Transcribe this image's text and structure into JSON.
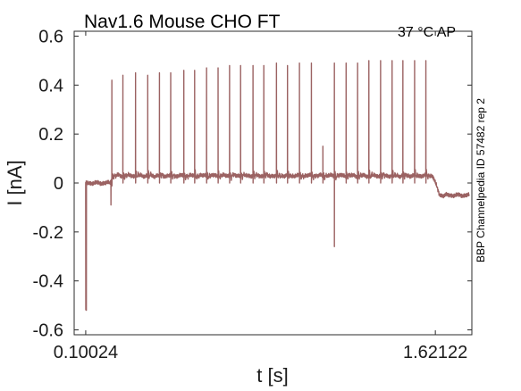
{
  "chart_data": {
    "type": "line",
    "title": "Nav1.6  Mouse  CHO FT",
    "condition": "37 °C  AP",
    "side_note": "BBP Channelpedia ID 57482 rep 2",
    "xlabel": "t [s]",
    "ylabel": "I [nA]",
    "x_ticks": [
      "0.10024",
      "1.62122"
    ],
    "y_ticks": [
      "-0.6",
      "-0.4",
      "-0.2",
      "0",
      "0.2",
      "0.4",
      "0.6"
    ],
    "xlim": [
      0.05,
      1.78
    ],
    "ylim": [
      -0.62,
      0.62
    ],
    "grid": false,
    "line_color": "#9b6262",
    "baseline": {
      "pre": 0.0,
      "during": 0.03,
      "post": -0.05,
      "stim_start": 0.205,
      "stim_end": 1.61
    },
    "spike_times": [
      0.214,
      0.262,
      0.317,
      0.37,
      0.421,
      0.47,
      0.527,
      0.574,
      0.626,
      0.676,
      0.726,
      0.774,
      0.828,
      0.875,
      0.93,
      0.978,
      1.03,
      1.082,
      1.132,
      1.182,
      1.233,
      1.283,
      1.332,
      1.383,
      1.433,
      1.48,
      1.531,
      1.58
    ],
    "spike_peaks": [
      0.42,
      0.44,
      0.45,
      0.44,
      0.45,
      0.45,
      0.46,
      0.46,
      0.47,
      0.47,
      0.48,
      0.48,
      0.48,
      0.48,
      0.49,
      0.48,
      0.49,
      0.49,
      0.15,
      0.49,
      0.49,
      0.49,
      0.5,
      0.5,
      0.5,
      0.5,
      0.5,
      0.5
    ],
    "artifacts": [
      {
        "t": 0.103,
        "value": -0.52
      },
      {
        "t": 0.21,
        "value": -0.09
      },
      {
        "t": 1.182,
        "value": -0.26
      }
    ]
  }
}
